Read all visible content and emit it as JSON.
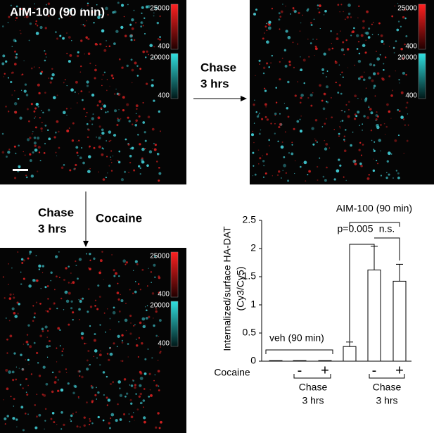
{
  "images": [
    {
      "label": "AIM-100 (90 min)",
      "colorbars": [
        {
          "max": 25000,
          "min": 400
        },
        {
          "max": 20000,
          "min": 400
        }
      ]
    },
    {
      "colorbars": [
        {
          "max": 25000,
          "min": 400
        },
        {
          "max": 20000,
          "min": 400
        }
      ]
    },
    {
      "colorbars": [
        {
          "max": 25000,
          "min": 400
        },
        {
          "max": 20000,
          "min": 400
        }
      ]
    }
  ],
  "arrows": [
    {
      "line1": "Chase",
      "line2": "3 hrs"
    },
    {
      "line1": "Chase",
      "line2": "3 hrs",
      "side_label": "Cocaine"
    }
  ],
  "chart_data": {
    "type": "bar",
    "ylabel": [
      "Internalized/surface HA-DAT",
      "(Cy3/Cy5)"
    ],
    "categories": [
      null,
      "-",
      "+",
      null,
      "-",
      "+"
    ],
    "values": [
      0.01,
      0.01,
      0.01,
      0.26,
      1.62,
      1.42
    ],
    "errors": [
      0,
      0,
      0,
      0.08,
      0.42,
      0.3
    ],
    "color": "#ffffff",
    "ylim": [
      0,
      2.5
    ],
    "yticks": [
      0,
      0.5,
      1,
      1.5,
      2,
      2.5
    ],
    "row_label": "Cocaine",
    "groups": [
      "veh (90 min)",
      "AIM-100 (90 min)"
    ],
    "comparisons": [
      "p=0.005",
      "n.s."
    ],
    "chase": [
      {
        "line1": "Chase",
        "line2": "3 hrs"
      },
      {
        "line1": "Chase",
        "line2": "3 hrs"
      }
    ]
  }
}
